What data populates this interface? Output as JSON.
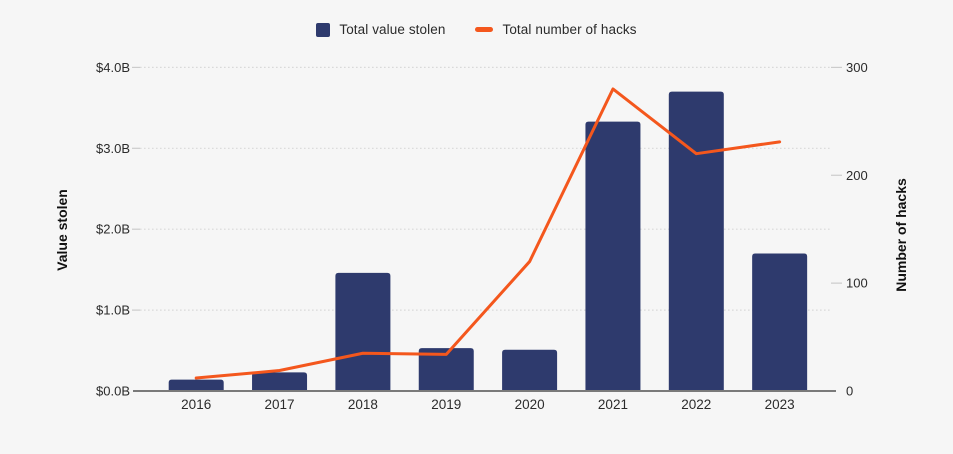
{
  "colors": {
    "background": "#f6f6f6",
    "bar": "#2e3a6d",
    "line": "#f4571d",
    "gridline": "#d9d9d9",
    "tick_stub": "#cccccc",
    "axis_line": "#7a7a7a",
    "text": "#2b2b2b"
  },
  "legend": {
    "position": "top-center",
    "items": [
      {
        "label": "Total value stolen",
        "marker": "square-icon",
        "color": "#2e3a6d"
      },
      {
        "label": "Total number of hacks",
        "marker": "dash-icon",
        "color": "#f4571d"
      }
    ]
  },
  "chart_data": {
    "type": "bar",
    "subtype": "combo bar + line, dual y-axis",
    "categories": [
      "2016",
      "2017",
      "2018",
      "2019",
      "2020",
      "2021",
      "2022",
      "2023"
    ],
    "series": [
      {
        "name": "Total value stolen",
        "type": "bar",
        "axis": "left",
        "unit": "USD billions",
        "values": [
          0.14,
          0.23,
          1.46,
          0.53,
          0.51,
          3.33,
          3.7,
          1.7
        ]
      },
      {
        "name": "Total number of hacks",
        "type": "line",
        "axis": "right",
        "unit": "hacks",
        "values": [
          12,
          19,
          35,
          34,
          120,
          280,
          220,
          231
        ]
      }
    ],
    "left_axis": {
      "title": "Value stolen",
      "tick_values": [
        0,
        1,
        2,
        3,
        4
      ],
      "tick_labels": [
        "$0.0B",
        "$1.0B",
        "$2.0B",
        "$3.0B",
        "$4.0B"
      ],
      "range": [
        0,
        4
      ]
    },
    "right_axis": {
      "title": "Number of hacks",
      "tick_values": [
        0,
        100,
        200,
        300
      ],
      "tick_labels": [
        "0",
        "100",
        "200",
        "300"
      ],
      "range": [
        0,
        300
      ]
    },
    "grid": "horizontal dotted lines at left-axis ticks",
    "legend_position": "top-center",
    "title": ""
  }
}
